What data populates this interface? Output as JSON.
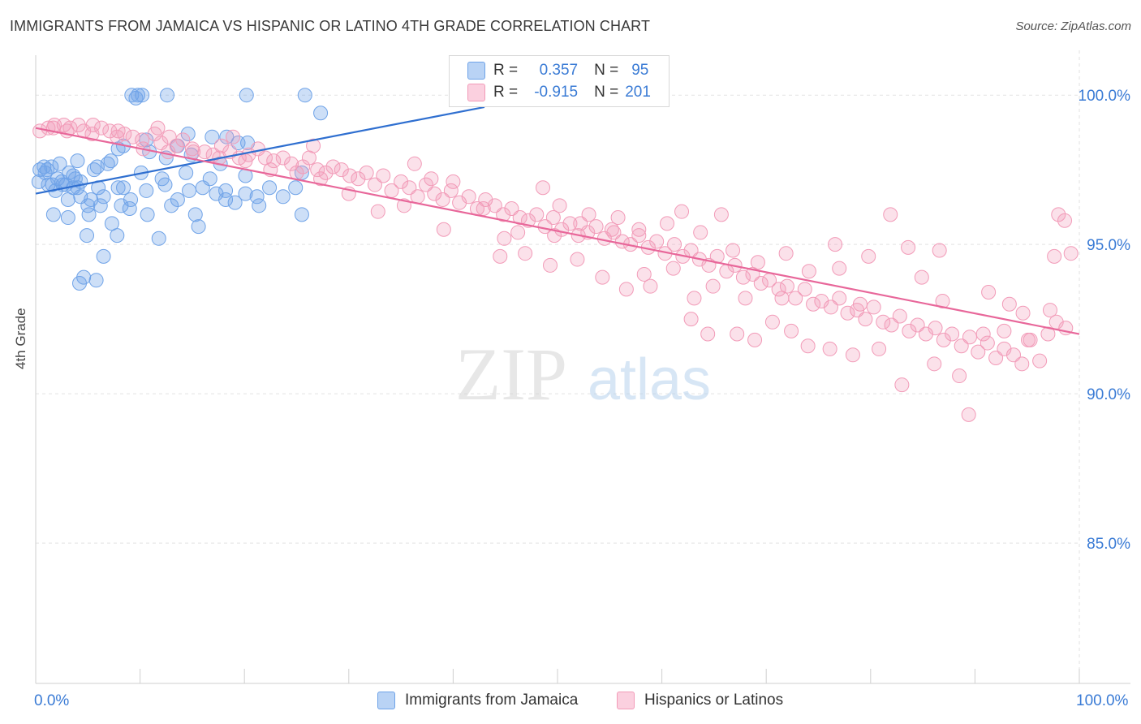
{
  "title": "IMMIGRANTS FROM JAMAICA VS HISPANIC OR LATINO 4TH GRADE CORRELATION CHART",
  "source": "Source: ZipAtlas.com",
  "watermark": {
    "zip": "ZIP",
    "atlas": "atlas"
  },
  "legend_top": [
    {
      "r_label": "R =",
      "r_value": "0.357",
      "n_label": "N =",
      "n_value": "95"
    },
    {
      "r_label": "R =",
      "r_value": "-0.915",
      "n_label": "N =",
      "n_value": "201"
    }
  ],
  "legend_bottom": [
    "Immigrants from Jamaica",
    "Hispanics or Latinos"
  ],
  "x_tick_left": "0.0%",
  "x_tick_right": "100.0%",
  "chart_data": {
    "type": "scatter",
    "ylabel": "4th Grade",
    "xlim": [
      0,
      100
    ],
    "ylim": [
      80.3,
      101.5
    ],
    "y_ticks": [
      {
        "value": 100,
        "label": "100.0%"
      },
      {
        "value": 95,
        "label": "95.0%"
      },
      {
        "value": 90,
        "label": "90.0%"
      },
      {
        "value": 85,
        "label": "85.0%"
      }
    ],
    "grid": true,
    "colors": {
      "jamaica": "#6fa3e8",
      "jamaica_line": "#2f6fd0",
      "hispanic": "#f29bb8",
      "hispanic_line": "#e8679a",
      "tick": "#3a7bd5"
    },
    "series": [
      {
        "name": "Immigrants from Jamaica",
        "color": "#6fa3e8",
        "trend": {
          "x": [
            0,
            43
          ],
          "y": [
            96.7,
            99.6
          ]
        },
        "points": [
          [
            9.2,
            100
          ],
          [
            10.2,
            100
          ],
          [
            9.8,
            100
          ],
          [
            12.6,
            100
          ],
          [
            20.2,
            100
          ],
          [
            25.8,
            100
          ],
          [
            9.6,
            99.9
          ],
          [
            27.3,
            99.4
          ],
          [
            14.6,
            98.7
          ],
          [
            18.3,
            98.6
          ],
          [
            19.4,
            98.4
          ],
          [
            7.9,
            98.2
          ],
          [
            13.6,
            98.3
          ],
          [
            10.6,
            98.5
          ],
          [
            7.2,
            97.8
          ],
          [
            12.5,
            97.9
          ],
          [
            10.9,
            98.1
          ],
          [
            8.4,
            98.3
          ],
          [
            14.9,
            98.0
          ],
          [
            1.5,
            97.6
          ],
          [
            0.4,
            97.5
          ],
          [
            2.3,
            97.7
          ],
          [
            4.0,
            97.8
          ],
          [
            5.9,
            97.6
          ],
          [
            3.2,
            97.4
          ],
          [
            14.4,
            97.4
          ],
          [
            20.1,
            97.3
          ],
          [
            25.5,
            97.4
          ],
          [
            16.7,
            97.2
          ],
          [
            12.1,
            97.2
          ],
          [
            0.3,
            97.1
          ],
          [
            3.6,
            97.3
          ],
          [
            2.5,
            97.1
          ],
          [
            1.6,
            97.0
          ],
          [
            2.9,
            97.0
          ],
          [
            4.3,
            97.1
          ],
          [
            1.2,
            97.0
          ],
          [
            3.6,
            96.9
          ],
          [
            7.9,
            96.9
          ],
          [
            6.0,
            96.9
          ],
          [
            8.4,
            96.9
          ],
          [
            10.6,
            96.8
          ],
          [
            16.0,
            96.9
          ],
          [
            24.9,
            96.9
          ],
          [
            17.3,
            96.7
          ],
          [
            14.7,
            96.8
          ],
          [
            4.3,
            96.6
          ],
          [
            3.1,
            96.5
          ],
          [
            5.3,
            96.5
          ],
          [
            6.5,
            96.6
          ],
          [
            9.1,
            96.5
          ],
          [
            13.6,
            96.5
          ],
          [
            18.2,
            96.5
          ],
          [
            19.1,
            96.4
          ],
          [
            21.2,
            96.6
          ],
          [
            23.7,
            96.6
          ],
          [
            20.1,
            96.7
          ],
          [
            5.0,
            96.3
          ],
          [
            6.2,
            96.3
          ],
          [
            1.7,
            96.0
          ],
          [
            3.1,
            95.9
          ],
          [
            10.7,
            96.0
          ],
          [
            25.5,
            96.0
          ],
          [
            5.1,
            96.0
          ],
          [
            7.3,
            95.7
          ],
          [
            15.6,
            95.6
          ],
          [
            7.8,
            95.3
          ],
          [
            4.9,
            95.3
          ],
          [
            6.5,
            94.6
          ],
          [
            4.6,
            93.9
          ],
          [
            4.2,
            93.7
          ],
          [
            5.8,
            93.8
          ],
          [
            18.2,
            96.8
          ],
          [
            16.9,
            98.6
          ],
          [
            20.3,
            98.4
          ],
          [
            4.0,
            96.9
          ],
          [
            2.6,
            97.0
          ],
          [
            0.8,
            97.6
          ],
          [
            1.1,
            97.5
          ],
          [
            2.1,
            97.2
          ],
          [
            0.9,
            97.4
          ],
          [
            13.0,
            96.3
          ],
          [
            11.8,
            95.2
          ],
          [
            8.2,
            96.3
          ],
          [
            9.0,
            96.2
          ],
          [
            21.4,
            96.3
          ],
          [
            22.4,
            96.9
          ],
          [
            3.8,
            97.2
          ],
          [
            1.9,
            96.8
          ],
          [
            5.6,
            97.5
          ],
          [
            6.9,
            97.7
          ],
          [
            10.1,
            97.4
          ],
          [
            12.4,
            97.0
          ],
          [
            17.7,
            97.7
          ],
          [
            15.3,
            96.0
          ]
        ]
      },
      {
        "name": "Hispanics or Latinos",
        "color": "#f29bb8",
        "trend": {
          "x": [
            0,
            100
          ],
          "y": [
            98.9,
            92.0
          ]
        },
        "points": [
          [
            0.4,
            98.8
          ],
          [
            1.2,
            98.9
          ],
          [
            1.8,
            99.0
          ],
          [
            2.7,
            99.0
          ],
          [
            3.3,
            98.9
          ],
          [
            4.1,
            99.0
          ],
          [
            4.6,
            98.8
          ],
          [
            5.5,
            99.0
          ],
          [
            6.3,
            98.9
          ],
          [
            7.1,
            98.8
          ],
          [
            7.9,
            98.8
          ],
          [
            8.5,
            98.7
          ],
          [
            9.3,
            98.6
          ],
          [
            10.2,
            98.5
          ],
          [
            11.4,
            98.7
          ],
          [
            12.0,
            98.4
          ],
          [
            12.8,
            98.6
          ],
          [
            13.5,
            98.3
          ],
          [
            14.1,
            98.5
          ],
          [
            15.0,
            98.2
          ],
          [
            16.2,
            98.1
          ],
          [
            17.0,
            98.0
          ],
          [
            17.8,
            98.3
          ],
          [
            18.6,
            98.1
          ],
          [
            19.5,
            97.9
          ],
          [
            20.4,
            98.0
          ],
          [
            21.3,
            98.2
          ],
          [
            22.0,
            97.9
          ],
          [
            22.8,
            97.8
          ],
          [
            23.7,
            97.9
          ],
          [
            24.5,
            97.7
          ],
          [
            25.6,
            97.6
          ],
          [
            26.2,
            97.9
          ],
          [
            27.0,
            97.5
          ],
          [
            27.8,
            97.4
          ],
          [
            28.5,
            97.6
          ],
          [
            29.3,
            97.5
          ],
          [
            30.1,
            97.3
          ],
          [
            30.9,
            97.2
          ],
          [
            31.7,
            97.4
          ],
          [
            32.5,
            97.0
          ],
          [
            33.3,
            97.3
          ],
          [
            34.1,
            96.8
          ],
          [
            35.0,
            97.1
          ],
          [
            35.8,
            96.9
          ],
          [
            36.6,
            96.6
          ],
          [
            37.4,
            97.0
          ],
          [
            38.2,
            96.7
          ],
          [
            39.0,
            96.5
          ],
          [
            39.8,
            96.8
          ],
          [
            40.6,
            96.4
          ],
          [
            41.5,
            96.6
          ],
          [
            42.3,
            96.2
          ],
          [
            43.1,
            96.5
          ],
          [
            44.0,
            96.3
          ],
          [
            44.8,
            96.0
          ],
          [
            45.6,
            96.2
          ],
          [
            46.4,
            95.9
          ],
          [
            47.2,
            95.8
          ],
          [
            48.0,
            96.0
          ],
          [
            48.8,
            95.6
          ],
          [
            49.6,
            95.9
          ],
          [
            50.4,
            95.5
          ],
          [
            51.2,
            95.7
          ],
          [
            52.0,
            95.3
          ],
          [
            52.9,
            95.4
          ],
          [
            53.7,
            95.6
          ],
          [
            54.5,
            95.2
          ],
          [
            55.4,
            95.4
          ],
          [
            56.2,
            95.1
          ],
          [
            57.0,
            95.0
          ],
          [
            57.8,
            95.3
          ],
          [
            58.7,
            94.9
          ],
          [
            59.5,
            95.1
          ],
          [
            60.3,
            94.7
          ],
          [
            61.2,
            95.0
          ],
          [
            62.0,
            94.6
          ],
          [
            62.8,
            94.8
          ],
          [
            63.6,
            94.5
          ],
          [
            64.5,
            94.3
          ],
          [
            65.3,
            94.6
          ],
          [
            66.2,
            94.1
          ],
          [
            67.0,
            94.3
          ],
          [
            67.8,
            93.9
          ],
          [
            68.7,
            94.0
          ],
          [
            69.5,
            93.7
          ],
          [
            70.3,
            93.8
          ],
          [
            71.2,
            93.5
          ],
          [
            72.0,
            93.6
          ],
          [
            72.8,
            93.2
          ],
          [
            73.7,
            93.5
          ],
          [
            74.5,
            93.0
          ],
          [
            75.3,
            93.1
          ],
          [
            76.2,
            92.9
          ],
          [
            77.0,
            93.2
          ],
          [
            77.8,
            92.7
          ],
          [
            78.7,
            92.8
          ],
          [
            79.5,
            92.5
          ],
          [
            80.3,
            92.9
          ],
          [
            81.2,
            92.4
          ],
          [
            82.0,
            92.3
          ],
          [
            82.8,
            92.6
          ],
          [
            83.7,
            92.1
          ],
          [
            84.5,
            92.3
          ],
          [
            85.3,
            92.0
          ],
          [
            86.2,
            92.2
          ],
          [
            87.0,
            91.8
          ],
          [
            87.8,
            92.0
          ],
          [
            88.7,
            91.6
          ],
          [
            89.5,
            91.9
          ],
          [
            90.3,
            91.4
          ],
          [
            91.2,
            91.7
          ],
          [
            92.0,
            91.2
          ],
          [
            92.8,
            91.5
          ],
          [
            93.7,
            91.3
          ],
          [
            94.5,
            91.0
          ],
          [
            95.3,
            91.8
          ],
          [
            96.2,
            91.1
          ],
          [
            97.0,
            92.0
          ],
          [
            97.8,
            92.4
          ],
          [
            98.7,
            92.2
          ],
          [
            99.2,
            94.7
          ],
          [
            97.6,
            94.6
          ],
          [
            98.0,
            96.0
          ],
          [
            98.6,
            95.8
          ],
          [
            94.6,
            92.7
          ],
          [
            95.1,
            91.8
          ],
          [
            93.3,
            93.0
          ],
          [
            92.8,
            92.1
          ],
          [
            89.4,
            89.3
          ],
          [
            88.5,
            90.6
          ],
          [
            90.8,
            92.0
          ],
          [
            86.1,
            91.0
          ],
          [
            83.0,
            90.3
          ],
          [
            80.8,
            91.5
          ],
          [
            78.3,
            91.3
          ],
          [
            76.1,
            91.5
          ],
          [
            74.0,
            91.6
          ],
          [
            72.4,
            92.1
          ],
          [
            70.6,
            92.4
          ],
          [
            68.9,
            91.8
          ],
          [
            67.2,
            92.0
          ],
          [
            64.4,
            92.0
          ],
          [
            62.8,
            92.5
          ],
          [
            86.6,
            94.8
          ],
          [
            84.9,
            93.9
          ],
          [
            83.6,
            94.9
          ],
          [
            81.9,
            96.0
          ],
          [
            79.8,
            94.6
          ],
          [
            77.0,
            94.2
          ],
          [
            74.1,
            94.1
          ],
          [
            71.9,
            94.7
          ],
          [
            69.2,
            94.4
          ],
          [
            66.8,
            94.8
          ],
          [
            64.9,
            93.6
          ],
          [
            63.1,
            93.2
          ],
          [
            61.1,
            94.2
          ],
          [
            58.9,
            93.6
          ],
          [
            56.6,
            93.5
          ],
          [
            54.3,
            93.9
          ],
          [
            51.9,
            94.5
          ],
          [
            49.3,
            94.3
          ],
          [
            46.9,
            94.7
          ],
          [
            44.5,
            94.6
          ],
          [
            61.9,
            96.1
          ],
          [
            60.5,
            95.7
          ],
          [
            57.8,
            95.5
          ],
          [
            55.2,
            95.5
          ],
          [
            52.2,
            95.7
          ],
          [
            49.7,
            95.3
          ],
          [
            46.2,
            95.4
          ],
          [
            42.9,
            96.2
          ],
          [
            40.0,
            97.1
          ],
          [
            37.9,
            97.2
          ],
          [
            35.3,
            96.3
          ],
          [
            32.8,
            96.1
          ],
          [
            30.0,
            96.7
          ],
          [
            27.3,
            97.2
          ],
          [
            25.0,
            97.4
          ],
          [
            22.5,
            97.5
          ],
          [
            20.1,
            97.8
          ],
          [
            17.6,
            97.9
          ],
          [
            15.1,
            98.1
          ],
          [
            12.7,
            98.1
          ],
          [
            10.3,
            98.2
          ],
          [
            7.8,
            98.6
          ],
          [
            5.4,
            98.7
          ],
          [
            3.0,
            98.8
          ],
          [
            1.7,
            98.9
          ],
          [
            39.1,
            95.5
          ],
          [
            44.9,
            95.2
          ],
          [
            68.0,
            93.2
          ],
          [
            50.2,
            96.3
          ],
          [
            53.0,
            96.0
          ],
          [
            58.3,
            94.0
          ],
          [
            65.7,
            96.0
          ],
          [
            76.6,
            95.0
          ],
          [
            79.0,
            93.0
          ],
          [
            86.9,
            93.1
          ],
          [
            91.3,
            93.4
          ],
          [
            71.5,
            93.2
          ],
          [
            97.2,
            92.8
          ],
          [
            55.8,
            95.9
          ],
          [
            63.7,
            95.4
          ],
          [
            48.6,
            96.9
          ],
          [
            36.3,
            97.7
          ],
          [
            26.6,
            98.3
          ],
          [
            18.9,
            98.6
          ],
          [
            11.7,
            98.9
          ]
        ]
      }
    ]
  }
}
